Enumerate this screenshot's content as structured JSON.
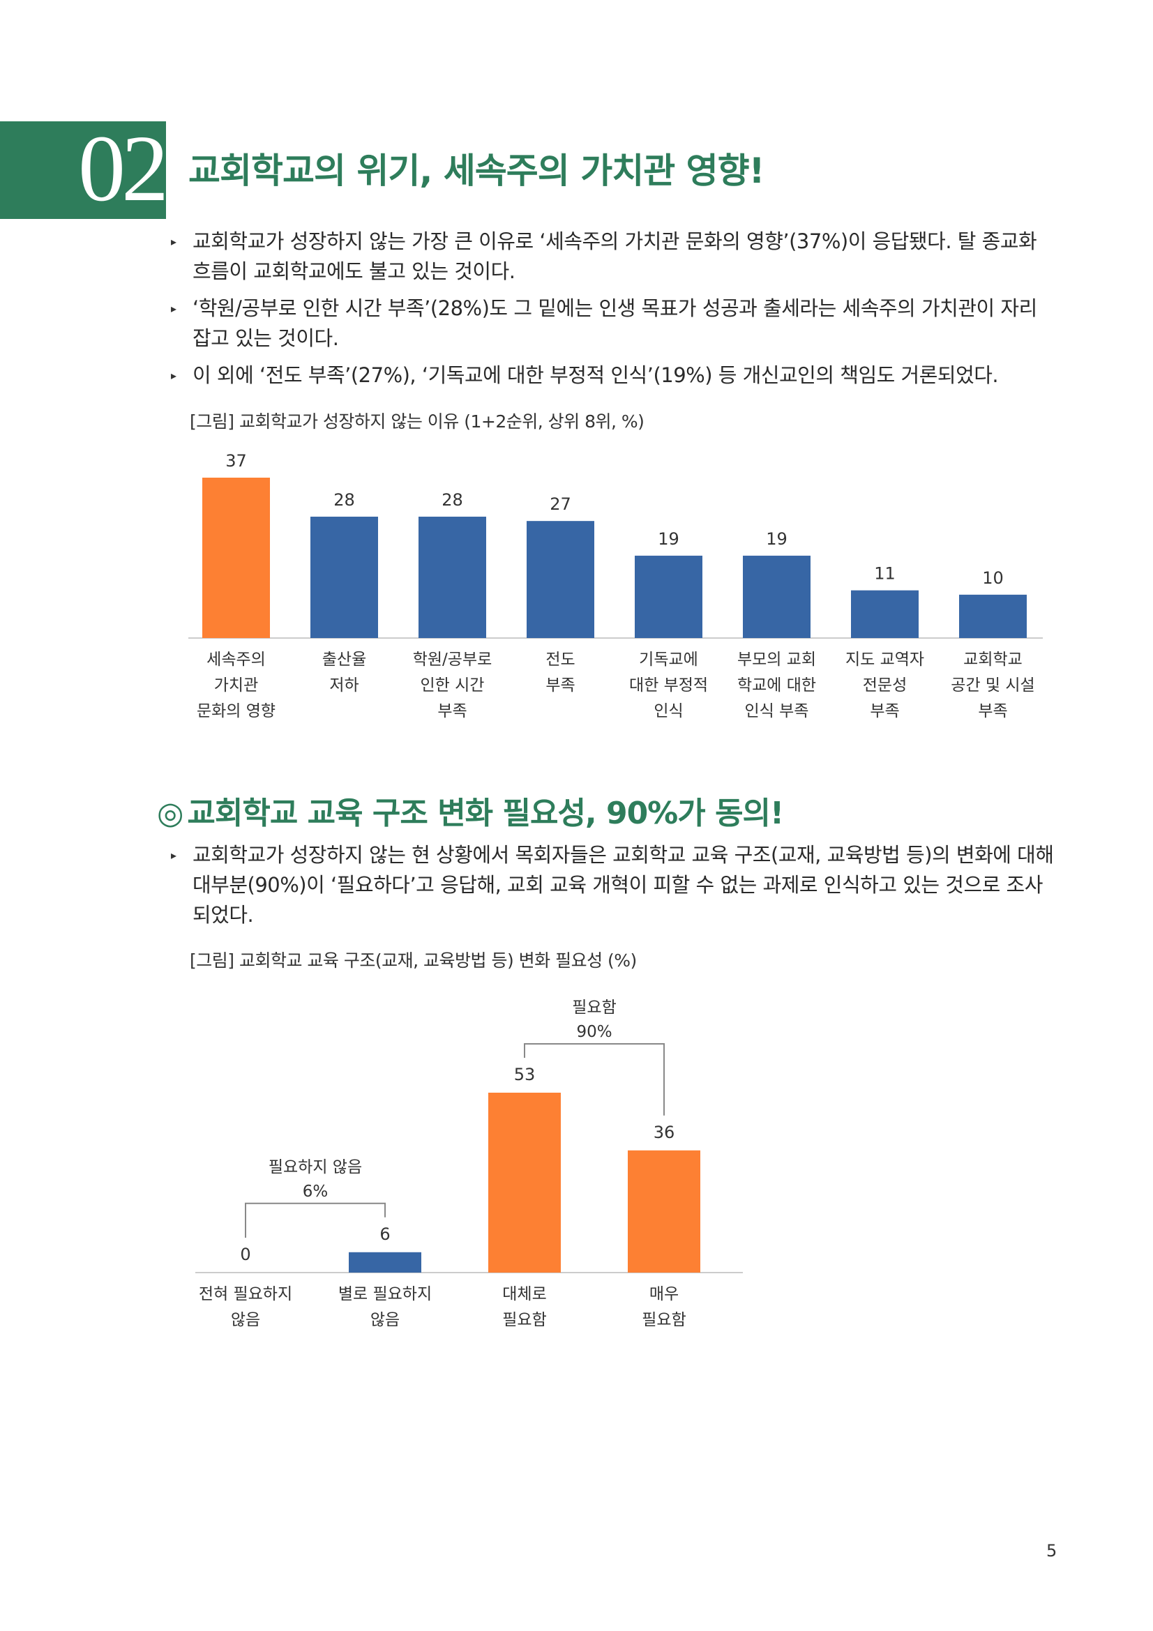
{
  "section": {
    "number": "02",
    "title": "교회학교의 위기, 세속주의 가치관 영향!"
  },
  "bullets1": [
    "교회학교가 성장하지 않는 가장 큰 이유로 ‘세속주의 가치관 문화의 영향’(37%)이 응답됐다. 탈 종교화 흐름이 교회학교에도 불고 있는 것이다.",
    "‘학원/공부로 인한 시간 부족’(28%)도 그 밑에는 인생 목표가 성공과 출세라는 세속주의 가치관이 자리 잡고 있는 것이다.",
    "이 외에 ‘전도 부족’(27%), ‘기독교에 대한 부정적 인식’(19%) 등 개신교인의 책임도 거론되었다."
  ],
  "figure1": {
    "caption": "[그림] 교회학교가 성장하지 않는 이유 (1+2순위, 상위 8위, %)"
  },
  "subsection": {
    "marker": "◎",
    "title": "교회학교 교육 구조 변화 필요성, 90%가 동의!"
  },
  "bullets2": [
    "교회학교가 성장하지 않는 현 상황에서 목회자들은 교회학교 교육 구조(교재, 교육방법 등)의 변화에 대해 대부분(90%)이 ‘필요하다’고 응답해, 교회 교육 개혁이 피할 수 없는 과제로 인식하고 있는 것으로 조사되었다."
  ],
  "figure2": {
    "caption": "[그림] 교회학교 교육 구조(교재, 교육방법 등) 변화 필요성 (%)"
  },
  "page_number": "5",
  "colors": {
    "green": "#2e7d5b",
    "orange": "#fd8033",
    "blue": "#3766a5"
  },
  "chart_data": [
    {
      "type": "bar",
      "title": "",
      "categories": [
        [
          "세속주의",
          "가치관",
          "문화의 영향"
        ],
        [
          "출산율",
          "저하"
        ],
        [
          "학원/공부로",
          "인한 시간",
          "부족"
        ],
        [
          "전도",
          "부족"
        ],
        [
          "기독교에",
          "대한 부정적",
          "인식"
        ],
        [
          "부모의 교회",
          "학교에 대한",
          "인식 부족"
        ],
        [
          "지도 교역자",
          "전문성",
          "부족"
        ],
        [
          "교회학교",
          "공간 및 시설",
          "부족"
        ]
      ],
      "values": [
        37,
        28,
        28,
        27,
        19,
        19,
        11,
        10
      ],
      "highlight_index": 0,
      "ylim": [
        0,
        37
      ],
      "grid": false,
      "xlabel": "",
      "ylabel": ""
    },
    {
      "type": "bar",
      "title": "",
      "categories": [
        [
          "전혀 필요하지",
          "않음"
        ],
        [
          "별로 필요하지",
          "않음"
        ],
        [
          "대체로",
          "필요함"
        ],
        [
          "매우",
          "필요함"
        ]
      ],
      "values": [
        0,
        6,
        53,
        36
      ],
      "bar_colors": [
        "#3766a5",
        "#3766a5",
        "#fd8033",
        "#fd8033"
      ],
      "ylim": [
        0,
        53
      ],
      "grid": false,
      "groups": [
        {
          "label": [
            "필요하지 않음",
            "6%"
          ],
          "from": 0,
          "to": 1
        },
        {
          "label": [
            "필요함",
            "90%"
          ],
          "from": 2,
          "to": 3
        }
      ]
    }
  ]
}
